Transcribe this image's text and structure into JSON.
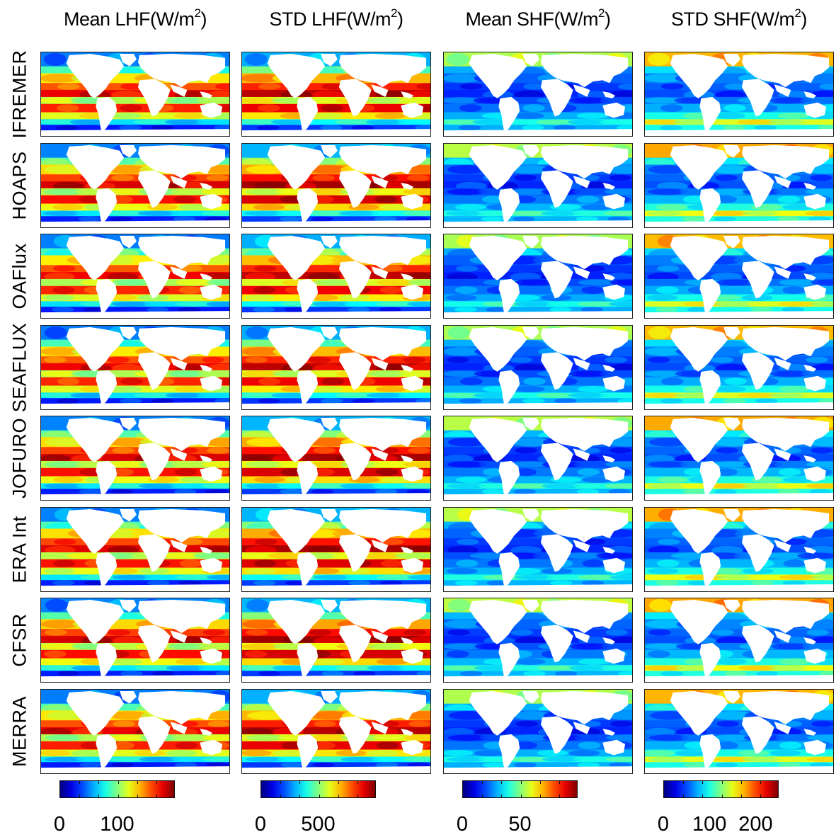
{
  "columns": [
    {
      "key": "mean_lhf",
      "label": "Mean LHF(W/m",
      "sup": "2",
      "close": ")",
      "style": "lhf",
      "colorbar": {
        "ticks": [
          "0",
          "100"
        ],
        "range": [
          0,
          200
        ]
      }
    },
    {
      "key": "std_lhf",
      "label": "STD LHF(W/m",
      "sup": "2",
      "close": ")",
      "style": "lhfs",
      "colorbar": {
        "ticks": [
          "0",
          "500"
        ],
        "range": [
          0,
          1000
        ]
      }
    },
    {
      "key": "mean_shf",
      "label": "Mean SHF(W/m",
      "sup": "2",
      "close": ")",
      "style": "shf",
      "colorbar": {
        "ticks": [
          "0",
          "50"
        ],
        "range": [
          0,
          100
        ]
      }
    },
    {
      "key": "std_shf",
      "label": "STD SHF(W/m",
      "sup": "2",
      "close": ")",
      "style": "shfs",
      "colorbar": {
        "ticks": [
          "0",
          "100",
          "200"
        ],
        "range": [
          0,
          250
        ]
      }
    }
  ],
  "rows": [
    {
      "label": "IFREMER",
      "intensity": 0.95
    },
    {
      "label": "HOAPS",
      "intensity": 1.1
    },
    {
      "label": "OAFlux",
      "intensity": 0.9
    },
    {
      "label": "SEAFLUX",
      "intensity": 0.92
    },
    {
      "label": "JOFURO",
      "intensity": 1.08
    },
    {
      "label": "ERA Int",
      "intensity": 1.05
    },
    {
      "label": "CFSR",
      "intensity": 1.12
    },
    {
      "label": "MERRA",
      "intensity": 0.97
    }
  ],
  "colormap": "jet",
  "colors": {
    "land": "#ffffff",
    "frame": "#222222"
  }
}
